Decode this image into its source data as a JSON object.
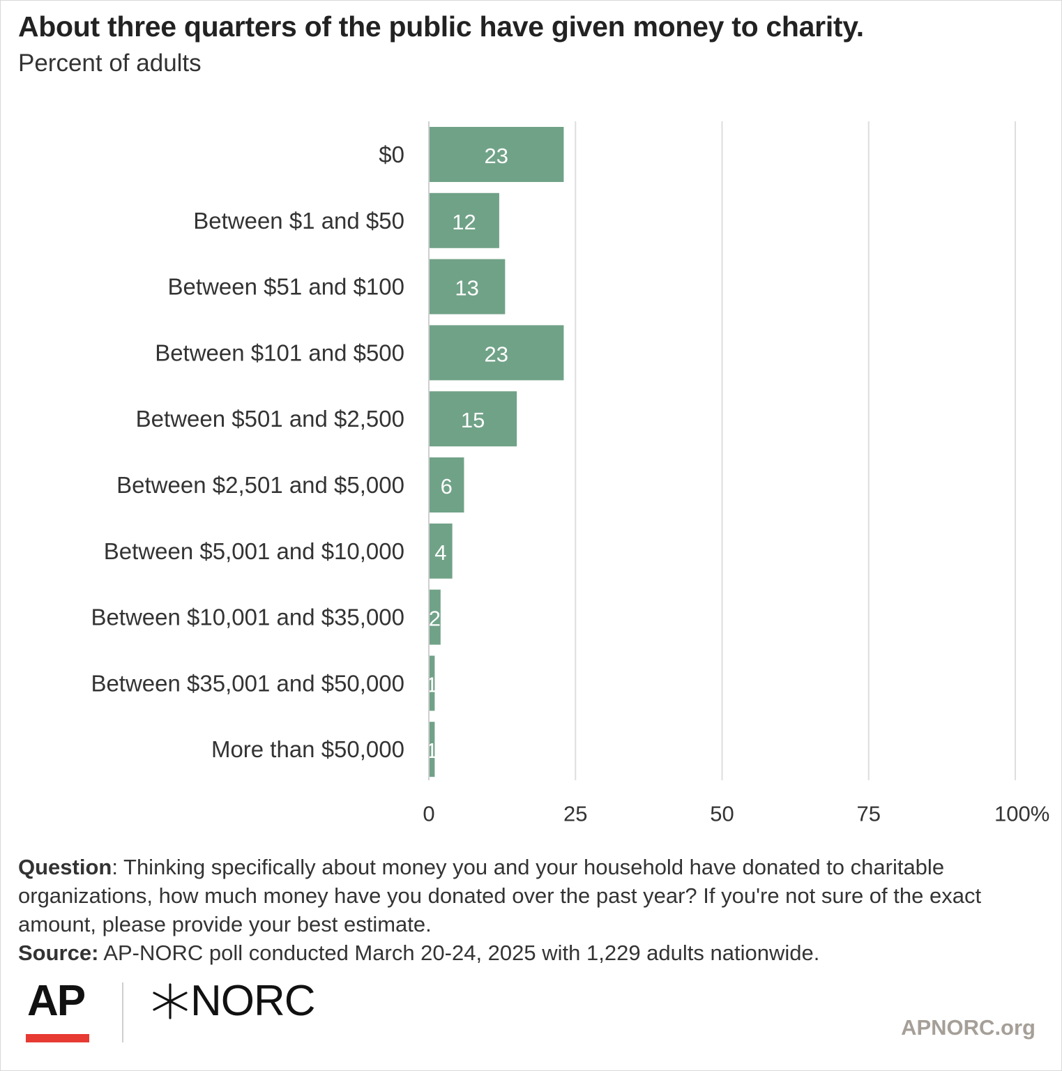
{
  "title": "About three quarters of the public have given money to charity.",
  "subtitle": "Percent of adults",
  "chart_data": {
    "type": "bar",
    "orientation": "horizontal",
    "categories": [
      "$0",
      "Between $1 and $50",
      "Between $51 and $100",
      "Between $101 and $500",
      "Between $501 and $2,500",
      "Between $2,501 and $5,000",
      "Between $5,001 and $10,000",
      "Between $10,001 and $35,000",
      "Between $35,001 and $50,000",
      "More than $50,000"
    ],
    "values": [
      23,
      12,
      13,
      23,
      15,
      6,
      4,
      2,
      1,
      1
    ],
    "data_labels": [
      "23",
      "12",
      "13",
      "23",
      "15",
      "6",
      "4",
      "2",
      "1",
      "1"
    ],
    "xlim": [
      0,
      100
    ],
    "ticks": [
      0,
      25,
      50,
      75,
      100
    ],
    "tick_labels": [
      "0",
      "25",
      "50",
      "75",
      "100%"
    ],
    "grid": true,
    "legend": "none",
    "bar_color": "#70a287",
    "grid_color": "#dedede"
  },
  "footnote": {
    "question_label": "Question",
    "question_text": ": Thinking specifically about money you and your household have donated to charitable organizations, how much money have you donated over the past year? If you're not sure of the exact amount, please provide your best estimate.",
    "source_label": "Source:",
    "source_text": " AP-NORC poll conducted March 20-24, 2025 with 1,229 adults nationwide."
  },
  "branding": {
    "ap_logo": "AP",
    "norc_logo": "NORC",
    "norc_icon": "star-burst-icon",
    "site": "APNORC.org",
    "ap_red": "#e63a33"
  }
}
